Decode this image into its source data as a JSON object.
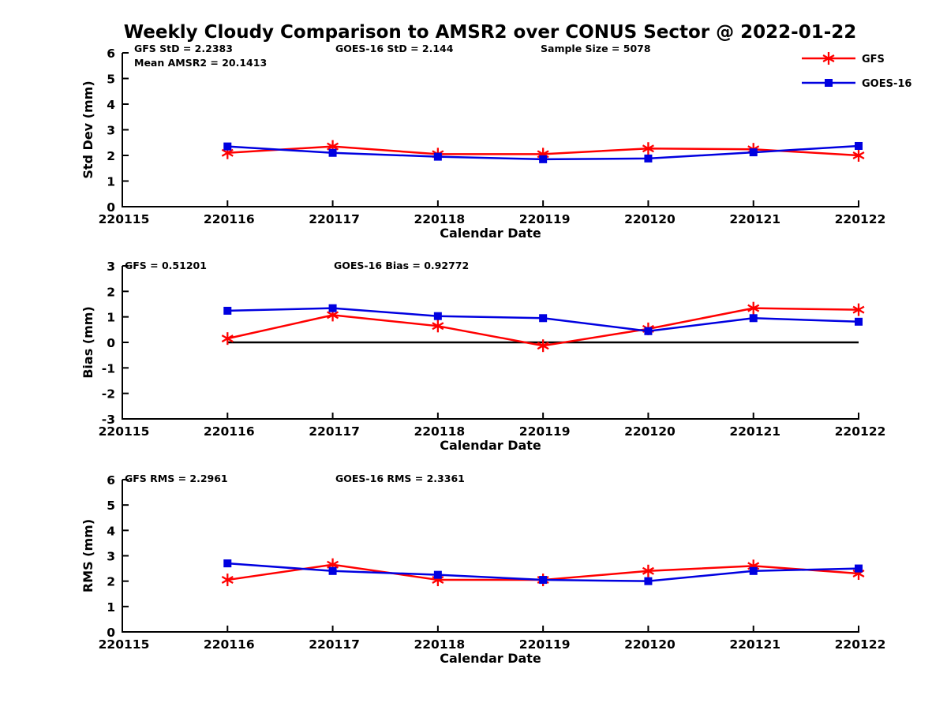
{
  "title": "Weekly Cloudy Comparison to AMSR2 over CONUS Sector @ 2022-01-22",
  "colors": {
    "gfs": "#ff0000",
    "goes16": "#0000e0",
    "axis": "#000000",
    "zero_line": "#000000"
  },
  "legend": {
    "position": "top-right",
    "entries": [
      {
        "label": "GFS",
        "color": "#ff0000",
        "marker": "asterisk"
      },
      {
        "label": "GOES-16",
        "color": "#0000e0",
        "marker": "square"
      }
    ]
  },
  "chart_data": [
    {
      "type": "line",
      "panel": "std-dev",
      "ylabel": "Std Dev (mm)",
      "xlabel": "Calendar Date",
      "ylim": [
        0,
        6
      ],
      "ytick_step": 1,
      "grid": false,
      "x_ticks": [
        "220115",
        "220116",
        "220117",
        "220118",
        "220119",
        "220120",
        "220121",
        "220122"
      ],
      "x": [
        "220116",
        "220117",
        "220118",
        "220119",
        "220120",
        "220121",
        "220122"
      ],
      "series": [
        {
          "name": "GFS",
          "color": "#ff0000",
          "marker": "asterisk",
          "values": [
            2.1,
            2.35,
            2.05,
            2.05,
            2.27,
            2.24,
            2.0
          ]
        },
        {
          "name": "GOES-16",
          "color": "#0000e0",
          "marker": "square",
          "values": [
            2.35,
            2.1,
            1.95,
            1.85,
            1.88,
            2.12,
            2.37
          ]
        }
      ],
      "zero_line": false,
      "annotations": [
        "GFS StD = 2.2383",
        "Mean AMSR2 = 20.1413",
        "GOES-16 StD = 2.144",
        "Sample Size = 5078"
      ]
    },
    {
      "type": "line",
      "panel": "bias",
      "ylabel": "Bias (mm)",
      "xlabel": "Calendar Date",
      "ylim": [
        -3,
        3
      ],
      "ytick_step": 1,
      "grid": false,
      "x_ticks": [
        "220115",
        "220116",
        "220117",
        "220118",
        "220119",
        "220120",
        "220121",
        "220122"
      ],
      "x": [
        "220116",
        "220117",
        "220118",
        "220119",
        "220120",
        "220121",
        "220122"
      ],
      "series": [
        {
          "name": "GFS",
          "color": "#ff0000",
          "marker": "asterisk",
          "values": [
            0.15,
            1.07,
            0.64,
            -0.13,
            0.53,
            1.34,
            1.28
          ]
        },
        {
          "name": "GOES-16",
          "color": "#0000e0",
          "marker": "square",
          "values": [
            1.24,
            1.34,
            1.03,
            0.95,
            0.44,
            0.95,
            0.81
          ]
        }
      ],
      "zero_line": true,
      "annotations": [
        "GFS = 0.51201",
        "GOES-16 Bias  = 0.92772"
      ]
    },
    {
      "type": "line",
      "panel": "rms",
      "ylabel": "RMS (mm)",
      "xlabel": "Calendar Date",
      "ylim": [
        0,
        6
      ],
      "ytick_step": 1,
      "grid": false,
      "x_ticks": [
        "220115",
        "220116",
        "220117",
        "220118",
        "220119",
        "220120",
        "220121",
        "220122"
      ],
      "x": [
        "220116",
        "220117",
        "220118",
        "220119",
        "220120",
        "220121",
        "220122"
      ],
      "series": [
        {
          "name": "GFS",
          "color": "#ff0000",
          "marker": "asterisk",
          "values": [
            2.05,
            2.65,
            2.05,
            2.05,
            2.4,
            2.6,
            2.3
          ]
        },
        {
          "name": "GOES-16",
          "color": "#0000e0",
          "marker": "square",
          "values": [
            2.7,
            2.4,
            2.25,
            2.05,
            2.0,
            2.4,
            2.5
          ]
        }
      ],
      "zero_line": false,
      "annotations": [
        "GFS RMS = 2.2961",
        "GOES-16 RMS = 2.3361"
      ]
    }
  ]
}
